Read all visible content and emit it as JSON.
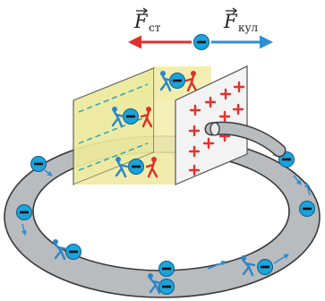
{
  "labels": {
    "left_force_symbol": "F",
    "left_force_subscript": "ст",
    "right_force_symbol": "F",
    "right_force_subscript": "кул"
  },
  "colors": {
    "electron_fill": "#1aa3dc",
    "force_left_arrow": "#e0302c",
    "force_right_arrow": "#2e8fd0",
    "plus_sign": "#e53030",
    "ring_fill": "#b9bcbf",
    "ring_stroke": "#3a3a3a",
    "left_plate": "#ecea9c",
    "right_plate": "#f3f3f3",
    "figure_blue": "#2b86c8",
    "figure_red": "#d8322a"
  },
  "icons": {
    "electron": "electron-minus-icon",
    "plus": "plus-charge-icon",
    "figure_blue": "stick-figure-pushing-icon",
    "figure_red": "stick-figure-pulling-icon"
  }
}
